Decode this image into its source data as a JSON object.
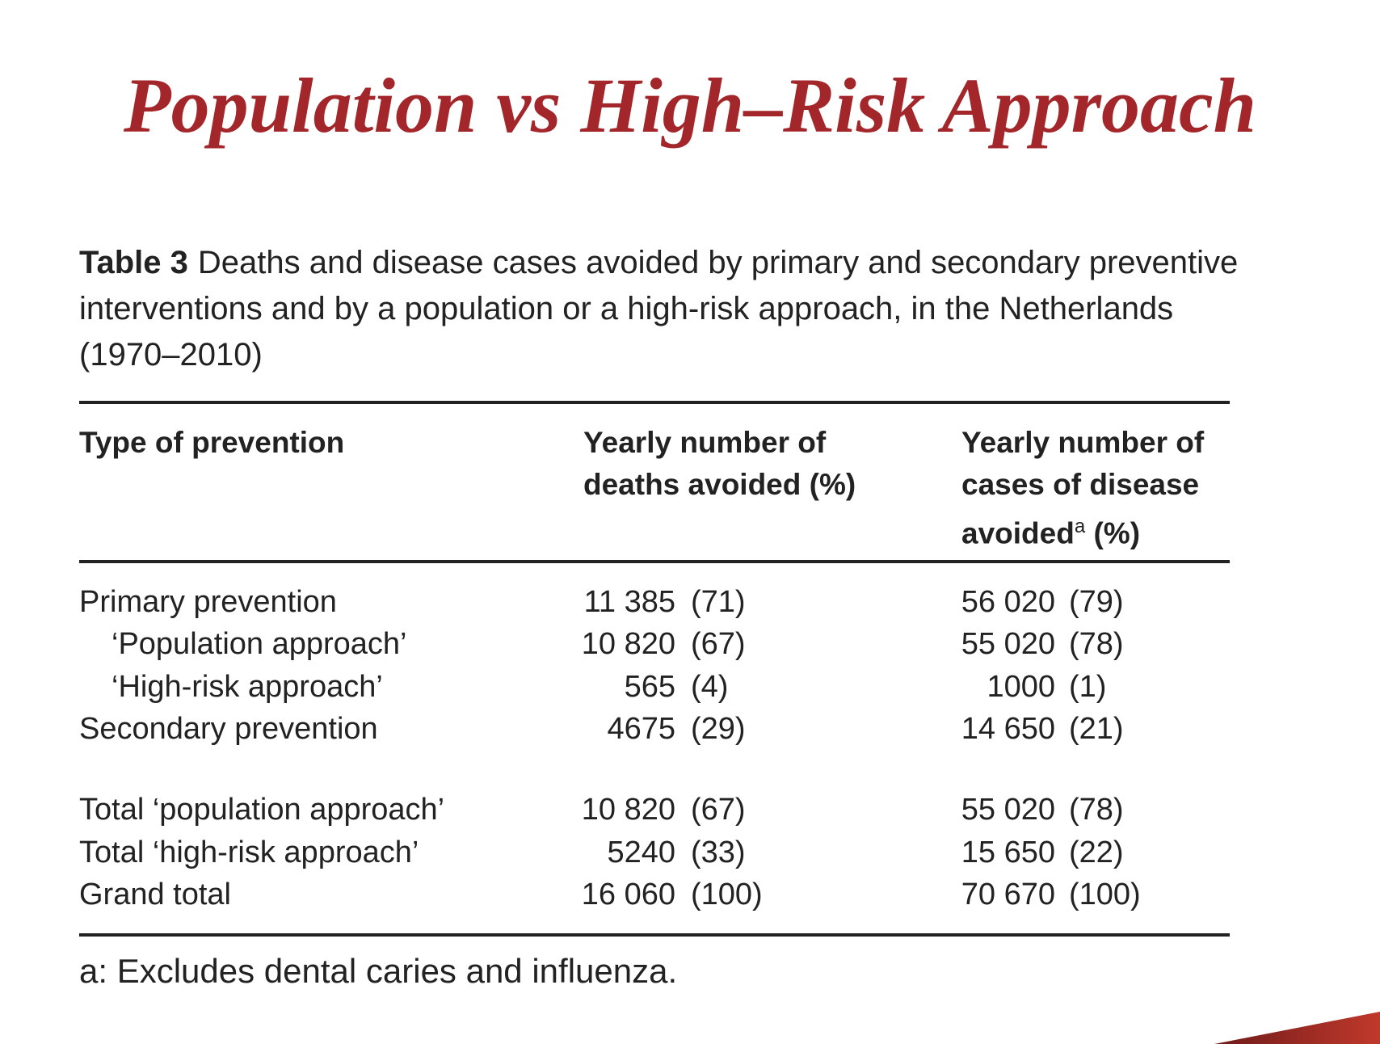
{
  "title": "Population vs High–Risk Approach",
  "caption": {
    "label": "Table 3",
    "text": "Deaths and disease cases avoided by primary and secondary preventive interventions and by a population or a high-risk approach, in the Netherlands (1970–2010)"
  },
  "table": {
    "columns": [
      {
        "text": "Type of prevention"
      },
      {
        "text": "Yearly number of deaths avoided (%)"
      },
      {
        "text": "Yearly number of cases of disease avoided",
        "note": "a",
        "unit": "(%)"
      }
    ],
    "groups": [
      [
        {
          "label": "Primary prevention",
          "level": 0,
          "cells": [
            {
              "n": "11 385",
              "p": "(71)"
            },
            {
              "n": "56 020",
              "p": "(79)"
            }
          ]
        },
        {
          "label": "‘Population approach’",
          "level": 1,
          "cells": [
            {
              "n": "10 820",
              "p": "(67)"
            },
            {
              "n": "55 020",
              "p": "(78)"
            }
          ]
        },
        {
          "label": "‘High-risk approach’",
          "level": 1,
          "cells": [
            {
              "n": "565",
              "p": "(4)"
            },
            {
              "n": "1000",
              "p": "(1)"
            }
          ]
        },
        {
          "label": "Secondary prevention",
          "level": 0,
          "cells": [
            {
              "n": "4675",
              "p": "(29)"
            },
            {
              "n": "14 650",
              "p": "(21)"
            }
          ]
        }
      ],
      [
        {
          "label": "Total ‘population approach’",
          "level": 0,
          "cells": [
            {
              "n": "10 820",
              "p": "(67)"
            },
            {
              "n": "55 020",
              "p": "(78)"
            }
          ]
        },
        {
          "label": "Total ‘high-risk approach’",
          "level": 0,
          "cells": [
            {
              "n": "5240",
              "p": "(33)"
            },
            {
              "n": "15 650",
              "p": "(22)"
            }
          ]
        },
        {
          "label": "Grand total",
          "level": 0,
          "cells": [
            {
              "n": "16 060",
              "p": "(100)"
            },
            {
              "n": "70 670",
              "p": "(100)"
            }
          ]
        }
      ]
    ],
    "footnote": "a: Excludes dental caries and influenza."
  }
}
